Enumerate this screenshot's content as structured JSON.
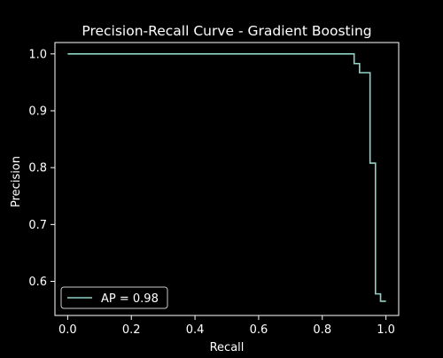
{
  "chart_data": {
    "type": "line",
    "title": "Precision-Recall Curve - Gradient Boosting",
    "xlabel": "Recall",
    "ylabel": "Precision",
    "xlim": [
      -0.04,
      1.04
    ],
    "ylim": [
      0.54,
      1.02
    ],
    "xticks": [
      0.0,
      0.2,
      0.4,
      0.6,
      0.8,
      1.0
    ],
    "xtick_labels": [
      "0.0",
      "0.2",
      "0.4",
      "0.6",
      "0.8",
      "1.0"
    ],
    "yticks": [
      0.6,
      0.7,
      0.8,
      0.9,
      1.0
    ],
    "ytick_labels": [
      "0.6",
      "0.7",
      "0.8",
      "0.9",
      "1.0"
    ],
    "grid": false,
    "legend_position": "lower-left",
    "series": [
      {
        "name": "AP = 0.98",
        "color": "#8dd3c7",
        "drawstyle": "steps-post",
        "x": [
          0.0,
          0.9,
          0.9,
          0.917,
          0.917,
          0.95,
          0.95,
          0.967,
          0.967,
          0.983,
          0.983,
          1.0
        ],
        "y": [
          1.0,
          1.0,
          0.983,
          0.983,
          0.967,
          0.967,
          0.808,
          0.808,
          0.578,
          0.578,
          0.565,
          0.565
        ]
      }
    ]
  },
  "style": {
    "background": "#000000",
    "axis_color": "#ffffff",
    "text_color": "#ffffff"
  }
}
